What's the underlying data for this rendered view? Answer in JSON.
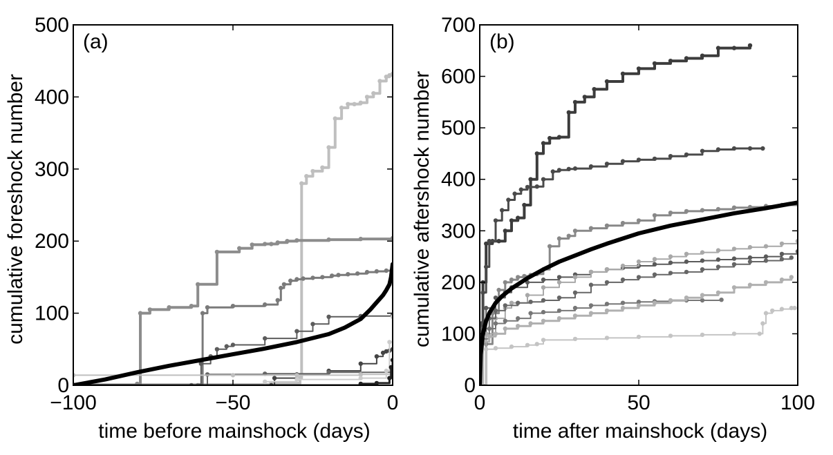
{
  "chart_data": [
    {
      "type": "line",
      "panel_label": "(a)",
      "xlabel": "time before mainshock (days)",
      "ylabel": "cumulative foreshock number",
      "xlim": [
        -100,
        0
      ],
      "ylim": [
        0,
        500
      ],
      "xticks": [
        -100,
        -50,
        0
      ],
      "xtick_labels": [
        "−100",
        "−50",
        "0"
      ],
      "yticks": [
        0,
        100,
        200,
        300,
        400,
        500
      ],
      "grid": false,
      "series": [
        {
          "color": "#bfbfbf",
          "width": 4,
          "markers": true,
          "style": "step",
          "x": [
            -100,
            -38,
            -29,
            -28.5,
            -27,
            -25,
            -22,
            -20,
            -18,
            -16,
            -14,
            -12,
            -10,
            -8,
            -6,
            -4,
            -2,
            -1,
            0
          ],
          "y": [
            1,
            3,
            10,
            280,
            290,
            297,
            302,
            330,
            370,
            385,
            390,
            390,
            392,
            400,
            405,
            422,
            428,
            430,
            432
          ]
        },
        {
          "color": "#8c8c8c",
          "width": 4,
          "markers": true,
          "style": "step",
          "x": [
            -100,
            -80,
            -79,
            -76,
            -70,
            -63,
            -61,
            -55,
            -48,
            -44,
            -40,
            -38,
            -36,
            -33,
            -30,
            -20,
            -10,
            0
          ],
          "y": [
            0,
            2,
            100,
            105,
            108,
            110,
            140,
            185,
            190,
            195,
            196,
            196,
            198,
            200,
            201,
            202,
            203,
            204
          ]
        },
        {
          "color": "#7a7a7a",
          "width": 3,
          "markers": true,
          "style": "step",
          "x": [
            -100,
            -61,
            -59.5,
            -58,
            -50,
            -40,
            -36,
            -35,
            -34,
            -32,
            -30,
            -28,
            -25,
            -22,
            -19,
            -17,
            -14,
            -11,
            -8,
            -5,
            -2,
            0
          ],
          "y": [
            0,
            0,
            100,
            108,
            110,
            112,
            118,
            135,
            140,
            145,
            147,
            148,
            149,
            150,
            152,
            153,
            154,
            155,
            157,
            158,
            159,
            160
          ]
        },
        {
          "color": "#5c5c5c",
          "width": 2,
          "markers": true,
          "style": "step",
          "x": [
            -100,
            -63,
            -60,
            -57,
            -55,
            -52,
            -50,
            -40,
            -30,
            -25,
            -20,
            -10,
            0
          ],
          "y": [
            0,
            0,
            30,
            40,
            50,
            54,
            56,
            65,
            75,
            85,
            95,
            96,
            97
          ]
        },
        {
          "color": "#444444",
          "width": 2,
          "markers": true,
          "style": "step",
          "x": [
            -100,
            -38,
            -37,
            -30,
            -20,
            -10,
            -5,
            -3,
            -2,
            -1,
            0
          ],
          "y": [
            0,
            0,
            10,
            15,
            20,
            30,
            40,
            45,
            47,
            48,
            50
          ]
        },
        {
          "color": "#666666",
          "width": 2,
          "markers": true,
          "style": "step",
          "x": [
            -100,
            -60,
            -58,
            -40,
            -20,
            0
          ],
          "y": [
            0,
            0,
            15,
            16,
            18,
            20
          ]
        },
        {
          "color": "#bfbfbf",
          "width": 2,
          "markers": true,
          "style": "step",
          "x": [
            -100,
            -50,
            -30,
            -10,
            0
          ],
          "y": [
            14,
            14,
            14,
            15,
            15
          ]
        },
        {
          "color": "#cccccc",
          "width": 2,
          "markers": true,
          "style": "step",
          "x": [
            -100,
            -40,
            -30,
            -10,
            -2,
            -1,
            0
          ],
          "y": [
            0,
            5,
            8,
            10,
            20,
            60,
            95
          ]
        },
        {
          "color": "#222222",
          "width": 3,
          "markers": true,
          "style": "step",
          "x": [
            -100,
            -10,
            -5,
            -1,
            -0.5,
            0
          ],
          "y": [
            0,
            2,
            3,
            10,
            25,
            35
          ]
        },
        {
          "color": "#000000",
          "width": 6,
          "markers": false,
          "style": "line",
          "x": [
            -100,
            -90,
            -80,
            -70,
            -60,
            -50,
            -40,
            -30,
            -20,
            -15,
            -10,
            -7,
            -5,
            -3,
            -2,
            -1,
            -0.5,
            0
          ],
          "y": [
            0,
            8,
            18,
            27,
            35,
            43,
            51,
            60,
            71,
            80,
            92,
            105,
            115,
            125,
            132,
            140,
            150,
            168
          ]
        }
      ]
    },
    {
      "type": "line",
      "panel_label": "(b)",
      "xlabel": "time after mainshock (days)",
      "ylabel": "cumulative aftershock number",
      "xlim": [
        0,
        100
      ],
      "ylim": [
        0,
        700
      ],
      "xticks": [
        0,
        50,
        100
      ],
      "xtick_labels": [
        "0",
        "50",
        "100"
      ],
      "yticks": [
        0,
        100,
        200,
        300,
        400,
        500,
        600,
        700
      ],
      "grid": false,
      "series": [
        {
          "color": "#3c3c3c",
          "width": 4,
          "markers": true,
          "style": "step",
          "x": [
            0,
            0.5,
            1,
            2,
            4,
            6,
            8,
            10,
            12,
            14,
            16,
            18,
            20,
            22,
            25,
            28,
            30,
            33,
            36,
            40,
            45,
            50,
            55,
            60,
            65,
            70,
            75,
            80,
            85
          ],
          "y": [
            0,
            100,
            200,
            275,
            280,
            280,
            300,
            320,
            325,
            350,
            400,
            450,
            470,
            480,
            482,
            530,
            550,
            560,
            575,
            590,
            605,
            615,
            625,
            630,
            635,
            640,
            655,
            655,
            660
          ]
        },
        {
          "color": "#4a4a4a",
          "width": 3,
          "markers": true,
          "style": "step",
          "x": [
            0,
            0.5,
            1,
            2,
            3,
            5,
            7,
            9,
            11,
            13,
            15,
            18,
            20,
            23,
            25,
            28,
            30,
            35,
            40,
            45,
            50,
            55,
            60,
            65,
            70,
            75,
            80,
            85,
            89
          ],
          "y": [
            0,
            120,
            180,
            230,
            280,
            320,
            340,
            360,
            372,
            380,
            385,
            386,
            400,
            415,
            418,
            420,
            421,
            425,
            430,
            435,
            438,
            440,
            445,
            448,
            455,
            458,
            460,
            460,
            460
          ]
        },
        {
          "color": "#888888",
          "width": 3,
          "markers": true,
          "style": "step",
          "x": [
            0,
            2,
            4,
            6,
            8,
            10,
            12,
            14,
            16,
            18,
            20,
            22,
            25,
            28,
            30,
            35,
            40,
            45,
            50,
            55,
            60,
            65,
            70,
            75,
            80,
            85,
            90,
            95,
            100
          ],
          "y": [
            0,
            80,
            140,
            185,
            200,
            205,
            210,
            212,
            214,
            216,
            225,
            270,
            285,
            290,
            300,
            305,
            310,
            315,
            320,
            330,
            335,
            338,
            340,
            342,
            345,
            346,
            348,
            350,
            352
          ]
        },
        {
          "color": "#5a5a5a",
          "width": 2,
          "markers": true,
          "style": "step",
          "x": [
            0,
            2,
            5,
            8,
            10,
            15,
            20,
            25,
            30,
            35,
            40,
            45,
            50,
            55,
            60,
            65,
            70,
            75,
            80,
            85,
            90,
            95,
            100
          ],
          "y": [
            0,
            150,
            170,
            180,
            190,
            200,
            205,
            210,
            215,
            220,
            225,
            228,
            232,
            235,
            238,
            240,
            242,
            244,
            246,
            248,
            250,
            255,
            260
          ]
        },
        {
          "color": "#a8a8a8",
          "width": 2,
          "markers": true,
          "style": "step",
          "x": [
            0,
            2,
            5,
            8,
            10,
            15,
            20,
            25,
            30,
            35,
            40,
            45,
            50,
            55,
            60,
            65,
            70,
            75,
            80,
            85,
            90,
            95,
            100
          ],
          "y": [
            0,
            100,
            130,
            150,
            160,
            175,
            190,
            200,
            210,
            220,
            225,
            232,
            240,
            245,
            250,
            255,
            258,
            262,
            265,
            268,
            270,
            275,
            280
          ]
        },
        {
          "color": "#666666",
          "width": 2,
          "markers": true,
          "style": "step",
          "x": [
            0,
            1,
            3,
            5,
            8,
            12,
            16,
            20,
            25,
            30,
            35,
            40,
            45,
            50,
            55,
            60,
            65,
            70,
            75,
            80,
            85,
            90,
            95,
            98
          ],
          "y": [
            0,
            110,
            130,
            145,
            155,
            160,
            162,
            165,
            170,
            180,
            195,
            200,
            205,
            210,
            215,
            218,
            220,
            225,
            230,
            235,
            240,
            242,
            245,
            248
          ]
        },
        {
          "color": "#777777",
          "width": 2,
          "markers": true,
          "style": "step",
          "x": [
            0,
            1,
            3,
            5,
            8,
            12,
            16,
            20,
            25,
            30,
            35,
            40,
            45,
            50,
            55,
            60,
            65,
            70,
            76
          ],
          "y": [
            0,
            90,
            110,
            120,
            125,
            130,
            140,
            142,
            145,
            150,
            155,
            158,
            160,
            162,
            163,
            164,
            165,
            165,
            166
          ]
        },
        {
          "color": "#b0b0b0",
          "width": 3,
          "markers": true,
          "style": "step",
          "x": [
            0,
            1,
            3,
            5,
            8,
            12,
            16,
            20,
            25,
            30,
            35,
            40,
            45,
            50,
            55,
            60,
            65,
            70,
            75,
            80,
            85,
            90,
            95,
            98
          ],
          "y": [
            0,
            85,
            95,
            100,
            110,
            115,
            120,
            125,
            130,
            135,
            140,
            145,
            150,
            155,
            160,
            165,
            170,
            175,
            180,
            190,
            195,
            200,
            205,
            210
          ]
        },
        {
          "color": "#c4c4c4",
          "width": 2,
          "markers": true,
          "style": "step",
          "x": [
            0,
            2,
            5,
            10,
            15,
            18,
            20,
            30,
            40,
            50,
            60,
            70,
            80,
            88,
            89,
            90,
            92,
            95,
            98,
            99
          ],
          "y": [
            0,
            70,
            72,
            75,
            78,
            80,
            88,
            90,
            92,
            94,
            96,
            98,
            100,
            100,
            120,
            140,
            145,
            148,
            150,
            150
          ]
        },
        {
          "color": "#000000",
          "width": 6,
          "markers": false,
          "style": "line",
          "x": [
            0,
            0.3,
            1,
            2,
            3,
            5,
            7,
            10,
            15,
            20,
            25,
            30,
            35,
            40,
            50,
            60,
            70,
            80,
            90,
            100
          ],
          "y": [
            0,
            60,
            100,
            125,
            140,
            160,
            173,
            188,
            208,
            225,
            240,
            252,
            264,
            275,
            295,
            310,
            322,
            334,
            344,
            355
          ]
        }
      ]
    }
  ]
}
